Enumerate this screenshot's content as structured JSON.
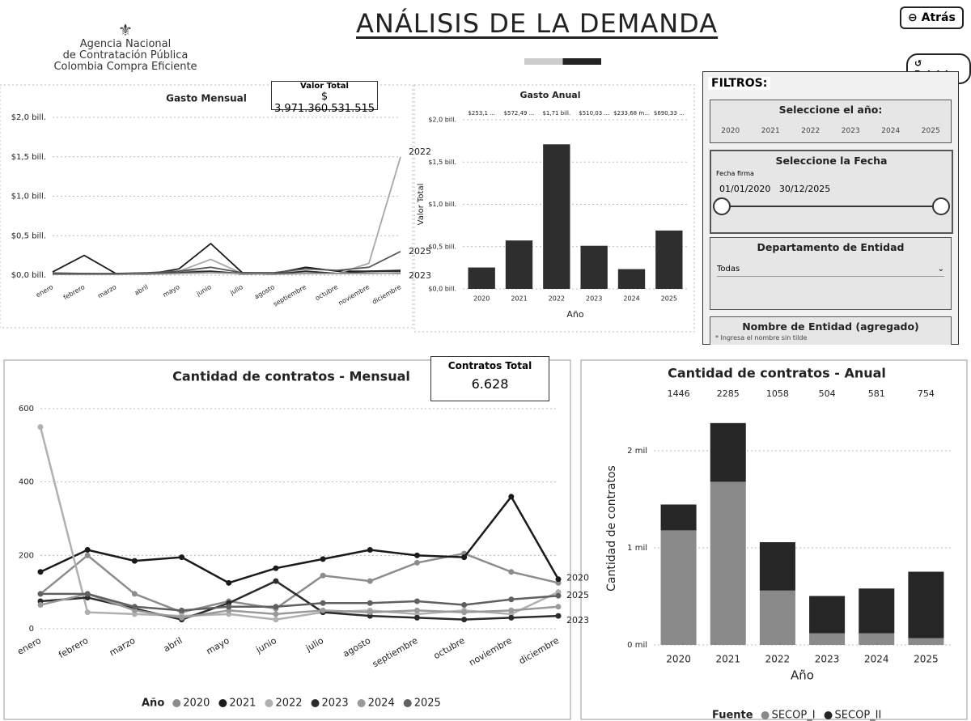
{
  "header": {
    "title": "ANÁLISIS DE LA DEMANDA",
    "logo_lines": [
      "Agencia Nacional",
      "de Contratación Pública",
      "Colombia Compra Eficiente"
    ],
    "back_button": "Atrás",
    "reset_button": "Reiniciar"
  },
  "cards": [
    {
      "label": "Valor Total",
      "value": "$ 3.971.360.531.515"
    },
    {
      "label": "Contratos Total",
      "value": "6.628"
    }
  ],
  "filters": {
    "title": "FILTROS:",
    "year_heading": "Seleccione el año:",
    "years": [
      "2020",
      "2021",
      "2022",
      "2023",
      "2024",
      "2025"
    ],
    "date_heading": "Seleccione la Fecha",
    "date_field": "Fecha firma",
    "date_from": "01/01/2020",
    "date_to": "30/12/2025",
    "department_heading": "Departamento de Entidad",
    "department_value": "Todas",
    "entity_heading": "Nombre de Entidad (agregado)",
    "entity_hint": "* Ingresa el nombre sin tilde"
  },
  "chart_data": [
    {
      "type": "line",
      "title": "Gasto Mensual",
      "categories": [
        "enero",
        "febrero",
        "marzo",
        "abril",
        "mayo",
        "junio",
        "julio",
        "agosto",
        "septiembre",
        "octubre",
        "noviembre",
        "diciembre"
      ],
      "ylim": [
        0,
        2
      ],
      "yticks": [
        {
          "value": 0,
          "label": "$0,0 bill."
        },
        {
          "value": 0.5,
          "label": "$0,5 bill."
        },
        {
          "value": 1,
          "label": "$1,0 bill."
        },
        {
          "value": 1.5,
          "label": "$1,5 bill."
        },
        {
          "value": 2,
          "label": "$2,0 bill."
        }
      ],
      "grid": true,
      "markers": false,
      "series": [
        {
          "name": "2020",
          "color": "#8c8c8c",
          "values": [
            0.03,
            0.02,
            0.01,
            0.02,
            0.05,
            0.05,
            0.01,
            0.02,
            0.05,
            0.02,
            0.03,
            0.02
          ]
        },
        {
          "name": "2021",
          "color": "#1a1a1a",
          "values": [
            0.04,
            0.25,
            0.02,
            0.01,
            0.08,
            0.4,
            0.03,
            0.02,
            0.1,
            0.05,
            0.05,
            0.06
          ]
        },
        {
          "name": "2022",
          "color": "#a8a8a8",
          "values": [
            0.02,
            0.01,
            0.01,
            0.02,
            0.05,
            0.2,
            0.02,
            0.01,
            0.03,
            0.02,
            0.15,
            1.5
          ]
        },
        {
          "name": "2023",
          "color": "#2b2b2b",
          "values": [
            0.01,
            0.01,
            0.01,
            0.02,
            0.03,
            0.05,
            0.02,
            0.01,
            0.05,
            0.02,
            0.05,
            0.05
          ]
        },
        {
          "name": "2024",
          "color": "#9a9a9a",
          "values": [
            0.01,
            0.01,
            0.01,
            0.01,
            0.02,
            0.03,
            0.02,
            0.01,
            0.02,
            0.02,
            0.02,
            0.03
          ]
        },
        {
          "name": "2025",
          "color": "#555555",
          "values": [
            0.02,
            0.02,
            0.02,
            0.03,
            0.05,
            0.1,
            0.03,
            0.03,
            0.08,
            0.06,
            0.1,
            0.3
          ]
        }
      ],
      "end_labels": [
        "2022",
        "2025",
        "2023"
      ]
    },
    {
      "type": "bar",
      "title": "Gasto Anual",
      "y_label": "Valor Total",
      "x_label": "Año",
      "categories": [
        "2020",
        "2021",
        "2022",
        "2023",
        "2024",
        "2025"
      ],
      "ylim": [
        0,
        2
      ],
      "yticks": [
        {
          "value": 0,
          "label": "$0,0 bill."
        },
        {
          "value": 0.5,
          "label": "$0,5 bill."
        },
        {
          "value": 1,
          "label": "$1,0 bill."
        },
        {
          "value": 1.5,
          "label": "$1,5 bill."
        },
        {
          "value": 2,
          "label": "$2,0 bill."
        }
      ],
      "grid": true,
      "color": "#2e2e2e",
      "values": [
        0.2531,
        0.57249,
        1.71,
        0.51003,
        0.23368,
        0.69033
      ],
      "value_labels": [
        "$253,1 ...",
        "$572,49 ...",
        "$1,71 bill.",
        "$510,03 ...",
        "$233,68 m...",
        "$690,33 ..."
      ]
    },
    {
      "type": "line",
      "title": "Cantidad de contratos - Mensual",
      "categories": [
        "enero",
        "febrero",
        "marzo",
        "abril",
        "mayo",
        "junio",
        "julio",
        "agosto",
        "septiembre",
        "octubre",
        "noviembre",
        "diciembre"
      ],
      "ylim": [
        0,
        600
      ],
      "yticks": [
        0,
        200,
        400,
        600
      ],
      "grid": true,
      "markers": true,
      "legend_title": "Año",
      "series": [
        {
          "name": "2020",
          "color": "#8c8c8c",
          "values": [
            95,
            200,
            95,
            45,
            75,
            55,
            145,
            130,
            180,
            205,
            155,
            125
          ]
        },
        {
          "name": "2021",
          "color": "#1a1a1a",
          "values": [
            155,
            215,
            185,
            195,
            125,
            165,
            190,
            215,
            200,
            195,
            360,
            135
          ]
        },
        {
          "name": "2022",
          "color": "#b0b0b0",
          "values": [
            550,
            45,
            40,
            35,
            40,
            25,
            45,
            50,
            40,
            50,
            40,
            100
          ]
        },
        {
          "name": "2023",
          "color": "#2b2b2b",
          "values": [
            75,
            85,
            55,
            25,
            70,
            130,
            45,
            35,
            30,
            25,
            30,
            35
          ]
        },
        {
          "name": "2024",
          "color": "#9a9a9a",
          "values": [
            65,
            95,
            50,
            30,
            50,
            40,
            50,
            45,
            50,
            45,
            50,
            60
          ]
        },
        {
          "name": "2025",
          "color": "#606060",
          "values": [
            95,
            95,
            60,
            50,
            60,
            60,
            70,
            70,
            75,
            65,
            80,
            90
          ]
        }
      ],
      "end_labels": [
        "2020",
        "2025",
        "2023"
      ]
    },
    {
      "type": "stacked_bar",
      "title": "Cantidad de contratos - Anual",
      "y_label": "Cantidad de contratos",
      "x_label": "Año",
      "legend_title": "Fuente",
      "categories": [
        "2020",
        "2021",
        "2022",
        "2023",
        "2024",
        "2025"
      ],
      "ylim": [
        0,
        2400
      ],
      "yticks": [
        {
          "value": 0,
          "label": "0 mil"
        },
        {
          "value": 1000,
          "label": "1 mil"
        },
        {
          "value": 2000,
          "label": "2 mil"
        }
      ],
      "grid": true,
      "series": [
        {
          "name": "SECOP_I",
          "color": "#8a8a8a",
          "values": [
            1180,
            1680,
            560,
            120,
            120,
            70
          ]
        },
        {
          "name": "SECOP_II",
          "color": "#262626",
          "values": [
            266,
            605,
            498,
            384,
            461,
            684
          ]
        }
      ],
      "totals": [
        1446,
        2285,
        1058,
        504,
        581,
        754
      ]
    }
  ]
}
